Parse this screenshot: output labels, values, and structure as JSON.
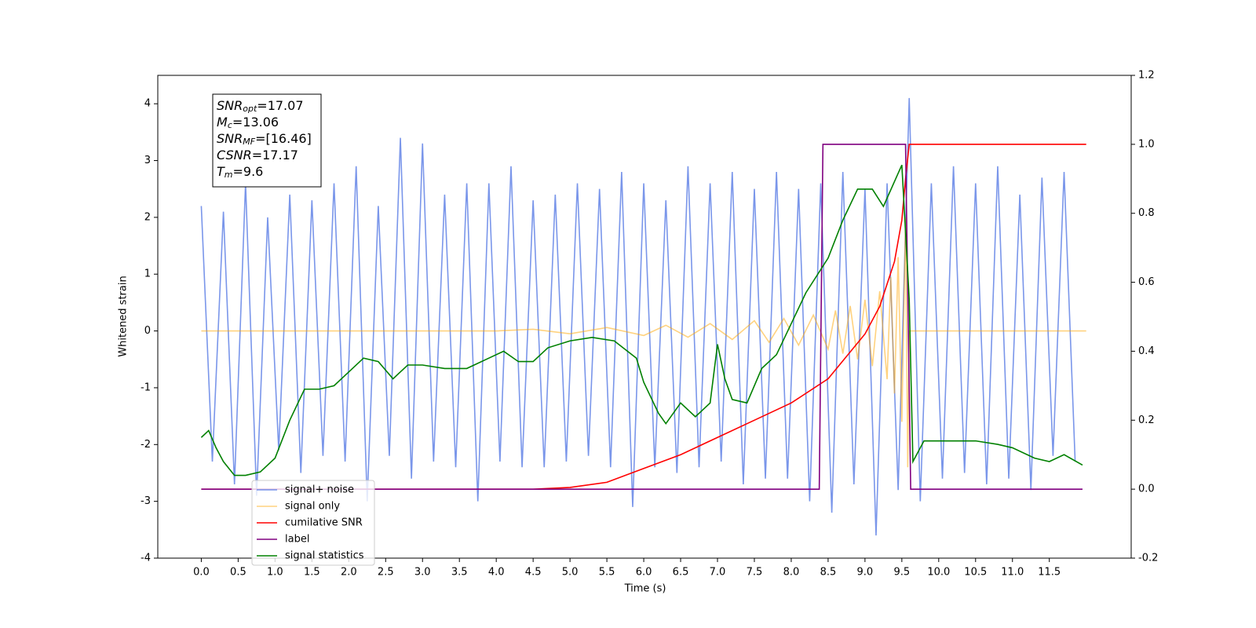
{
  "chart_data": {
    "type": "line",
    "xlabel": "Time (s)",
    "ylabel": "Whitened strain",
    "xlim": [
      -0.59,
      12.61
    ],
    "ylim": [
      -4,
      4.5
    ],
    "y2lim": [
      -0.2,
      1.2
    ],
    "xticks": [
      {
        "value": 0,
        "label": "0.0"
      },
      0.5,
      {
        "value": 1,
        "label": "1.0"
      },
      1.5,
      {
        "value": 2,
        "label": "2.0"
      },
      2.5,
      {
        "value": 3,
        "label": "3.0"
      },
      3.5,
      {
        "value": 4,
        "label": "4.0"
      },
      4.5,
      {
        "value": 5,
        "label": "5.0"
      },
      5.5,
      {
        "value": 6,
        "label": "6.0"
      },
      6.5,
      {
        "value": 7,
        "label": "7.0"
      },
      7.5,
      {
        "value": 8,
        "label": "8.0"
      },
      8.5,
      {
        "value": 9,
        "label": "9.0"
      },
      9.5,
      {
        "value": 10,
        "label": "10.0"
      },
      10.5,
      {
        "value": 11,
        "label": "11.0"
      },
      11.5
    ],
    "yticks": [
      -4,
      -3,
      -2,
      -1,
      0,
      1,
      2,
      3,
      4
    ],
    "y2ticks": [
      -0.2,
      {
        "value": 0,
        "label": "0.0"
      },
      0.2,
      0.4,
      0.6,
      0.8,
      {
        "value": 1,
        "label": "1.0"
      },
      1.2
    ],
    "legend": "lower left",
    "annotation": [
      {
        "name": "SNR",
        "sub": "opt",
        "text": "=17.07"
      },
      {
        "name": "M",
        "sub": "c",
        "text": "=13.06"
      },
      {
        "name": "SNR",
        "sub": "MF",
        "text": "=[16.46]"
      },
      {
        "name": "CSNR",
        "text": "=17.17"
      },
      {
        "name": "T",
        "sub": "m",
        "text": "=9.6"
      }
    ],
    "series": [
      {
        "name": "signal+ noise",
        "color": "#4169e1",
        "opacity": 0.7,
        "axis": "y",
        "x": [
          0,
          0.15,
          0.3,
          0.45,
          0.6,
          0.75,
          0.9,
          1.05,
          1.2,
          1.35,
          1.5,
          1.65,
          1.8,
          1.95,
          2.1,
          2.25,
          2.4,
          2.55,
          2.7,
          2.85,
          3,
          3.15,
          3.3,
          3.45,
          3.6,
          3.75,
          3.9,
          4.05,
          4.2,
          4.35,
          4.5,
          4.65,
          4.8,
          4.95,
          5.1,
          5.25,
          5.4,
          5.55,
          5.7,
          5.85,
          6,
          6.15,
          6.3,
          6.45,
          6.6,
          6.75,
          6.9,
          7.05,
          7.2,
          7.35,
          7.5,
          7.65,
          7.8,
          7.95,
          8.1,
          8.25,
          8.4,
          8.55,
          8.7,
          8.85,
          9,
          9.15,
          9.3,
          9.45,
          9.6,
          9.75,
          9.9,
          10.05,
          10.2,
          10.35,
          10.5,
          10.65,
          10.8,
          10.95,
          11.1,
          11.25,
          11.4,
          11.55,
          11.7,
          11.85
        ],
        "values": [
          2.2,
          -2.3,
          2.1,
          -2.7,
          2.6,
          -2.9,
          2,
          -2.1,
          2.4,
          -2.5,
          2.3,
          -2.2,
          2.6,
          -2.3,
          2.9,
          -3,
          2.2,
          -2.2,
          3.4,
          -2.6,
          3.3,
          -2.3,
          2.4,
          -2.4,
          2.6,
          -3,
          2.6,
          -2.3,
          2.9,
          -2.4,
          2.3,
          -2.4,
          2.4,
          -2.3,
          2.6,
          -2.2,
          2.5,
          -2.4,
          2.8,
          -3.1,
          2.6,
          -2.4,
          2.3,
          -2.5,
          2.9,
          -2.4,
          2.6,
          -2.3,
          2.8,
          -2.7,
          2.5,
          -2.6,
          2.8,
          -2.6,
          2.5,
          -3,
          2.6,
          -3.2,
          2.8,
          -2.7,
          2.5,
          -3.6,
          2.6,
          -2.8,
          4.1,
          -3,
          2.6,
          -2.6,
          2.9,
          -2.5,
          2.6,
          -2.7,
          2.9,
          -2.6,
          2.4,
          -2.8,
          2.7,
          -2.2,
          2.8,
          -2.3
        ]
      },
      {
        "name": "signal only",
        "color": "#ffa500",
        "opacity": 0.5,
        "axis": "y",
        "x": [
          0,
          4,
          4.5,
          5,
          5.5,
          6,
          6.3,
          6.6,
          6.9,
          7.2,
          7.5,
          7.7,
          7.9,
          8.1,
          8.3,
          8.5,
          8.6,
          8.7,
          8.8,
          8.9,
          9,
          9.1,
          9.2,
          9.3,
          9.35,
          9.4,
          9.45,
          9.5,
          9.55,
          9.58,
          9.6,
          12
        ],
        "values": [
          0,
          0,
          0.03,
          -0.05,
          0.06,
          -0.08,
          0.1,
          -0.11,
          0.13,
          -0.15,
          0.18,
          -0.2,
          0.22,
          -0.25,
          0.28,
          -0.32,
          0.36,
          -0.4,
          0.44,
          -0.5,
          0.55,
          -0.62,
          0.7,
          -0.85,
          0.95,
          -1.1,
          1.3,
          -1.6,
          2,
          -2.4,
          0,
          0
        ]
      },
      {
        "name": "cumilative SNR",
        "color": "#ff0000",
        "opacity": 1,
        "axis": "y2",
        "x": [
          0,
          4.5,
          5,
          5.5,
          6,
          6.5,
          7,
          7.5,
          8,
          8.5,
          9,
          9.2,
          9.4,
          9.5,
          9.55,
          9.6,
          9.62,
          12
        ],
        "values": [
          0,
          0,
          0.005,
          0.02,
          0.06,
          0.1,
          0.15,
          0.2,
          0.25,
          0.32,
          0.45,
          0.53,
          0.66,
          0.78,
          0.9,
          1,
          1,
          1
        ]
      },
      {
        "name": "label",
        "color": "#800080",
        "opacity": 1,
        "axis": "y2",
        "x": [
          0,
          8.38,
          8.43,
          9.55,
          9.62,
          11.95
        ],
        "values": [
          0,
          0,
          1,
          1,
          0,
          0
        ]
      },
      {
        "name": "signal statistics",
        "color": "#008000",
        "opacity": 1,
        "axis": "y2",
        "x": [
          0,
          0.1,
          0.2,
          0.3,
          0.45,
          0.6,
          0.8,
          1,
          1.2,
          1.4,
          1.6,
          1.8,
          2,
          2.2,
          2.4,
          2.6,
          2.8,
          3,
          3.3,
          3.6,
          3.9,
          4.1,
          4.3,
          4.5,
          4.7,
          5,
          5.3,
          5.6,
          5.9,
          6,
          6.2,
          6.3,
          6.5,
          6.7,
          6.9,
          7,
          7.1,
          7.2,
          7.4,
          7.6,
          7.8,
          8,
          8.2,
          8.5,
          8.7,
          8.9,
          9.1,
          9.25,
          9.5,
          9.6,
          9.65,
          9.8,
          10,
          10.5,
          10.8,
          11,
          11.3,
          11.5,
          11.7,
          11.95
        ],
        "values": [
          0.15,
          0.17,
          0.12,
          0.08,
          0.04,
          0.04,
          0.05,
          0.09,
          0.2,
          0.29,
          0.29,
          0.3,
          0.34,
          0.38,
          0.37,
          0.32,
          0.36,
          0.36,
          0.35,
          0.35,
          0.38,
          0.4,
          0.37,
          0.37,
          0.41,
          0.43,
          0.44,
          0.43,
          0.38,
          0.31,
          0.22,
          0.19,
          0.25,
          0.21,
          0.25,
          0.42,
          0.32,
          0.26,
          0.25,
          0.35,
          0.39,
          0.48,
          0.57,
          0.67,
          0.78,
          0.87,
          0.87,
          0.82,
          0.94,
          0.55,
          0.08,
          0.14,
          0.14,
          0.14,
          0.13,
          0.12,
          0.09,
          0.08,
          0.1,
          0.07
        ]
      }
    ]
  }
}
